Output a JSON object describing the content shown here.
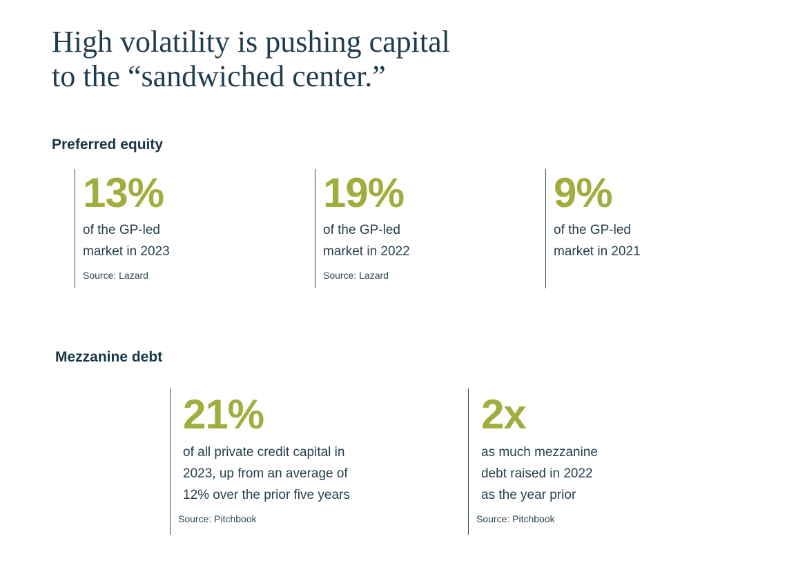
{
  "title": [
    "High volatility is pushing capital",
    "to the “sandwiched center.”"
  ],
  "sections": [
    {
      "heading": "Preferred equity",
      "stats": [
        {
          "value": "13%",
          "description": [
            "of the GP-led",
            "market in 2023"
          ],
          "source": "Source: Lazard"
        },
        {
          "value": "19%",
          "description": [
            "of the GP-led",
            "market in 2022"
          ],
          "source": "Source: Lazard"
        },
        {
          "value": "9%",
          "description": [
            "of the GP-led",
            "market in 2021"
          ]
        }
      ]
    },
    {
      "heading": "Mezzanine debt",
      "stats": [
        {
          "value": "21%",
          "description": [
            "of all private credit capital in",
            "2023, up from an average of",
            "12% over the prior five years"
          ],
          "source": "Source: Pitchbook"
        },
        {
          "value": "2x",
          "description": [
            "as much mezzanine",
            "debt raised in 2022",
            "as the year prior"
          ],
          "source": "Source: Pitchbook"
        }
      ]
    }
  ]
}
